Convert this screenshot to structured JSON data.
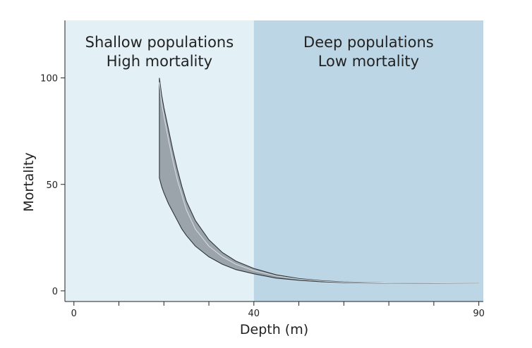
{
  "chart_data": {
    "type": "area",
    "xlabel": "Depth (m)",
    "ylabel": "Mortality",
    "xlim": [
      -2,
      91
    ],
    "ylim": [
      -5,
      127
    ],
    "x_ticks": [
      0,
      10,
      20,
      30,
      40,
      50,
      60,
      70,
      80,
      90
    ],
    "x_tick_labels": [
      "0",
      "",
      "",
      "",
      "40",
      "",
      "",
      "",
      "",
      "90"
    ],
    "y_ticks": [
      0,
      50,
      100
    ],
    "y_tick_labels": [
      "0",
      "50",
      "100"
    ],
    "grid": false,
    "regions": [
      {
        "x_start": -2,
        "x_end": 40,
        "color": "#e3f1f7",
        "label_lines": [
          "Shallow populations",
          "High mortality"
        ]
      },
      {
        "x_start": 40,
        "x_end": 91,
        "color": "#bdd6e5",
        "label_lines": [
          "Deep populations",
          "Low mortality"
        ]
      }
    ],
    "band": {
      "fill": "#8a9398",
      "stroke": "#2c3338",
      "x": [
        19,
        19.5,
        20,
        21,
        22,
        23,
        24,
        25,
        27,
        30,
        33,
        36,
        40,
        45,
        50,
        55,
        60,
        70,
        80,
        90
      ],
      "upper": [
        100,
        92,
        86,
        76,
        66,
        57,
        49,
        42,
        33,
        24,
        18,
        14,
        10.5,
        7.5,
        5.8,
        4.8,
        4.2,
        3.7,
        3.6,
        3.5
      ],
      "mean": [
        98,
        88,
        82,
        71,
        61,
        52,
        45,
        38,
        29,
        21,
        16,
        12.5,
        9.5,
        7,
        5.5,
        4.6,
        4.1,
        3.7,
        3.6,
        3.5
      ],
      "lower": [
        53,
        49,
        46,
        41,
        37,
        33,
        29,
        26,
        21,
        16,
        12.5,
        10,
        8,
        6,
        5,
        4.3,
        3.9,
        3.6,
        3.5,
        3.5
      ]
    }
  }
}
